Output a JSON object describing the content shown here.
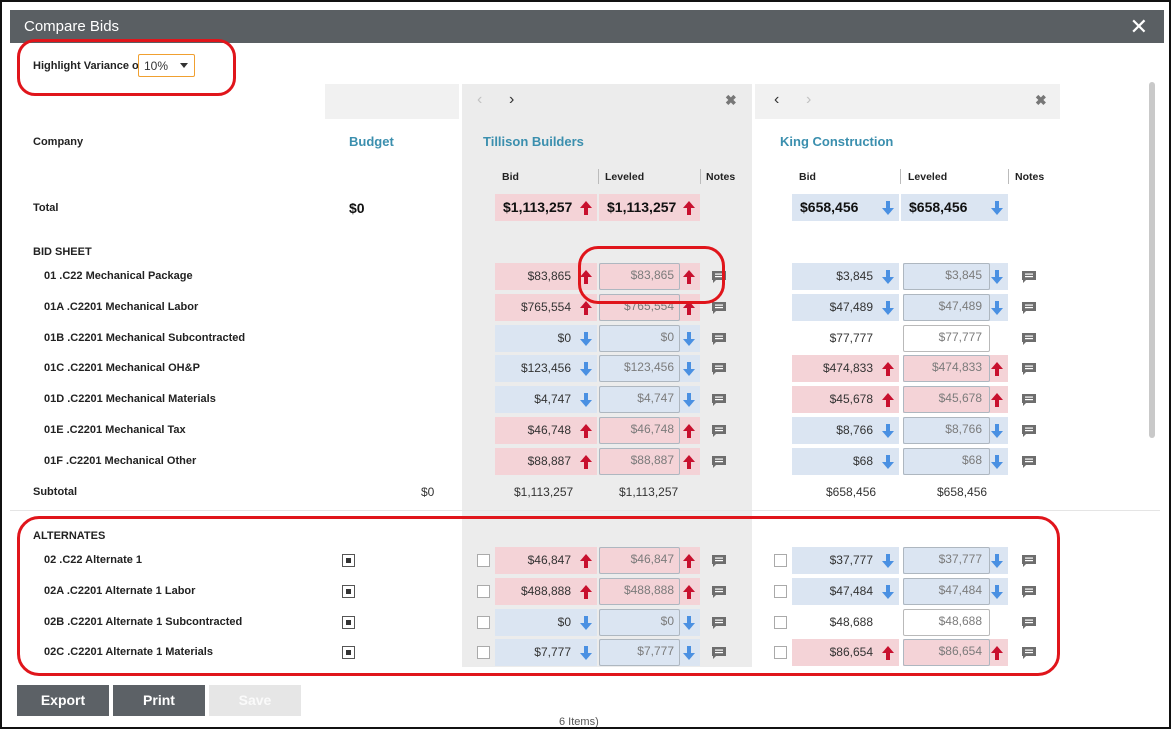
{
  "modal": {
    "title": "Compare Bids",
    "close_icon": "close-icon"
  },
  "variance": {
    "label": "Highlight Variance of",
    "value": "10%"
  },
  "row_labels": {
    "company": "Company",
    "total": "Total",
    "bid_sheet": "BID SHEET",
    "subtotal": "Subtotal",
    "alternates": "ALTERNATES"
  },
  "budget": {
    "header": "Budget",
    "total": "$0",
    "subtotal": "$0"
  },
  "bidders": [
    {
      "name": "Tillison Builders",
      "bid_label": "Bid",
      "leveled_label": "Leveled",
      "notes_label": "Notes",
      "total_bid": "$1,113,257",
      "total_leveled": "$1,113,257",
      "subtotal_bid": "$1,113,257",
      "subtotal_leveled": "$1,113,257"
    },
    {
      "name": "King Construction",
      "bid_label": "Bid",
      "leveled_label": "Leveled",
      "notes_label": "Notes",
      "total_bid": "$658,456",
      "total_leveled": "$658,456",
      "subtotal_bid": "$658,456",
      "subtotal_leveled": "$658,456"
    }
  ],
  "bid_items": [
    {
      "label": "01 .C22 Mechanical Package",
      "a_bid": "$83,865",
      "a_lev": "$83,865",
      "a_dir": "up",
      "b_bid": "$3,845",
      "b_lev": "$3,845",
      "b_dir": "down"
    },
    {
      "label": "01A .C2201 Mechanical Labor",
      "a_bid": "$765,554",
      "a_lev": "$765,554",
      "a_dir": "up",
      "b_bid": "$47,489",
      "b_lev": "$47,489",
      "b_dir": "down"
    },
    {
      "label": "01B .C2201 Mechanical Subcontracted",
      "a_bid": "$0",
      "a_lev": "$0",
      "a_dir": "down",
      "b_bid": "$77,777",
      "b_lev": "$77,777",
      "b_dir": "none"
    },
    {
      "label": "01C .C2201 Mechanical OH&P",
      "a_bid": "$123,456",
      "a_lev": "$123,456",
      "a_dir": "down",
      "b_bid": "$474,833",
      "b_lev": "$474,833",
      "b_dir": "up"
    },
    {
      "label": "01D .C2201 Mechanical Materials",
      "a_bid": "$4,747",
      "a_lev": "$4,747",
      "a_dir": "down",
      "b_bid": "$45,678",
      "b_lev": "$45,678",
      "b_dir": "up"
    },
    {
      "label": "01E .C2201 Mechanical Tax",
      "a_bid": "$46,748",
      "a_lev": "$46,748",
      "a_dir": "up",
      "b_bid": "$8,766",
      "b_lev": "$8,766",
      "b_dir": "down"
    },
    {
      "label": "01F .C2201 Mechanical Other",
      "a_bid": "$88,887",
      "a_lev": "$88,887",
      "a_dir": "up",
      "b_bid": "$68",
      "b_lev": "$68",
      "b_dir": "down"
    }
  ],
  "alternates": [
    {
      "label": "02 .C22 Alternate 1",
      "a_bid": "$46,847",
      "a_lev": "$46,847",
      "a_dir": "up",
      "b_bid": "$37,777",
      "b_lev": "$37,777",
      "b_dir": "down"
    },
    {
      "label": "02A .C2201 Alternate 1 Labor",
      "a_bid": "$488,888",
      "a_lev": "$488,888",
      "a_dir": "up",
      "b_bid": "$47,484",
      "b_lev": "$47,484",
      "b_dir": "down"
    },
    {
      "label": "02B .C2201 Alternate 1 Subcontracted",
      "a_bid": "$0",
      "a_lev": "$0",
      "a_dir": "down",
      "b_bid": "$48,688",
      "b_lev": "$48,688",
      "b_dir": "none"
    },
    {
      "label": "02C .C2201 Alternate 1 Materials",
      "a_bid": "$7,777",
      "a_lev": "$7,777",
      "a_dir": "down",
      "b_bid": "$86,654",
      "b_lev": "$86,654",
      "b_dir": "up"
    }
  ],
  "footer": {
    "export": "Export",
    "print": "Print",
    "save": "Save",
    "behind_text": "6 Items)"
  },
  "colors": {
    "header_bg": "#5a5f63",
    "accent": "#3b8fae",
    "up": "#c8102e",
    "down": "#4a90e2",
    "red_fill": "#f4d3d7",
    "blue_fill": "#dbe5f2",
    "ring": "#e0151b"
  }
}
